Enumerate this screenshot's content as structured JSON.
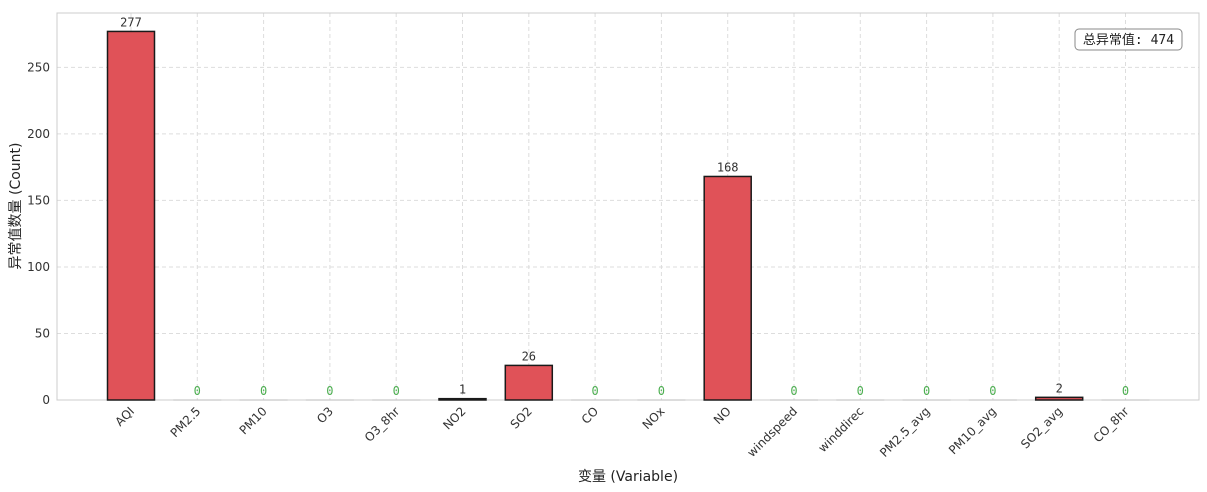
{
  "chart_data": {
    "type": "bar",
    "title": "",
    "xlabel": "变量 (Variable)",
    "ylabel": "异常值数量 (Count)",
    "categories": [
      "AQI",
      "PM2.5",
      "PM10",
      "O3",
      "O3_8hr",
      "NO2",
      "SO2",
      "CO",
      "NOx",
      "NO",
      "windspeed",
      "winddirec",
      "PM2.5_avg",
      "PM10_avg",
      "SO2_avg",
      "CO_8hr"
    ],
    "values": [
      277,
      0,
      0,
      0,
      0,
      1,
      26,
      0,
      0,
      168,
      0,
      0,
      0,
      0,
      2,
      0
    ],
    "ylim": [
      0,
      290.85
    ],
    "yticks": [
      0,
      50,
      100,
      150,
      200,
      250
    ],
    "grid": true,
    "annotation": "总异常值: 474",
    "annotation_position": "top-right",
    "colors": {
      "bar_fill": "#e05258",
      "bar_edge": "#1a1a1a",
      "nonzero_label": "#333333",
      "zero_label": "#4caf50",
      "grid": "#dddddd",
      "spine": "#cccccc"
    }
  }
}
